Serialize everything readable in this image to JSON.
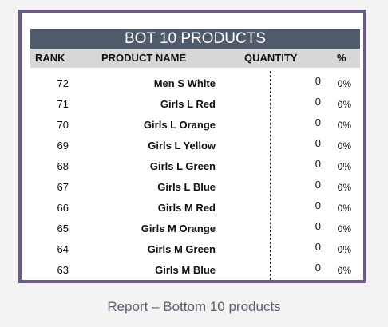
{
  "report": {
    "title": "BOT 10 PRODUCTS",
    "columns": {
      "rank": "RANK",
      "product_name": "PRODUCT NAME",
      "quantity": "QUANTITY",
      "percent": "%"
    },
    "rows": [
      {
        "rank": "72",
        "name": "Men S White",
        "quantity": "0",
        "percent": "0%"
      },
      {
        "rank": "71",
        "name": "Girls L Red",
        "quantity": "0",
        "percent": "0%"
      },
      {
        "rank": "70",
        "name": "Girls L Orange",
        "quantity": "0",
        "percent": "0%"
      },
      {
        "rank": "69",
        "name": "Girls L Yellow",
        "quantity": "0",
        "percent": "0%"
      },
      {
        "rank": "68",
        "name": "Girls L Green",
        "quantity": "0",
        "percent": "0%"
      },
      {
        "rank": "67",
        "name": "Girls L Blue",
        "quantity": "0",
        "percent": "0%"
      },
      {
        "rank": "66",
        "name": "Girls M Red",
        "quantity": "0",
        "percent": "0%"
      },
      {
        "rank": "65",
        "name": "Girls M Orange",
        "quantity": "0",
        "percent": "0%"
      },
      {
        "rank": "64",
        "name": "Girls M Green",
        "quantity": "0",
        "percent": "0%"
      },
      {
        "rank": "63",
        "name": "Girls M Blue",
        "quantity": "0",
        "percent": "0%"
      }
    ]
  },
  "caption": "Report – Bottom 10 products",
  "colors": {
    "frame_border": "#6b5b86",
    "title_bar": "#4f5a6a",
    "header_row": "#d7d7d7",
    "caption_text": "#5b6272"
  }
}
